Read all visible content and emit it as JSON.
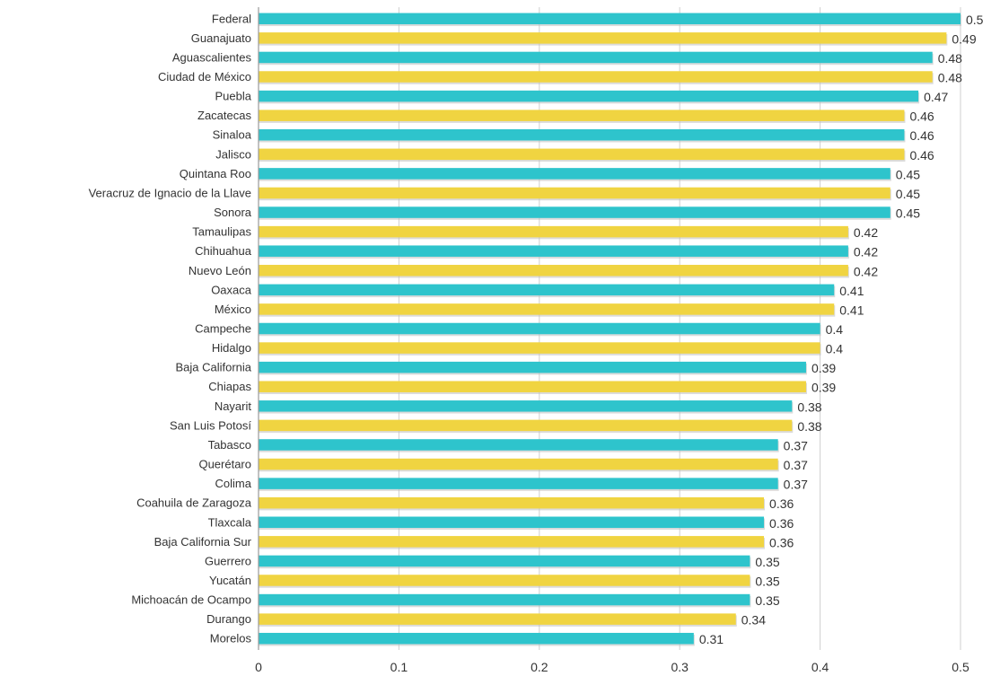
{
  "chart_data": {
    "type": "bar",
    "orientation": "horizontal",
    "title": "",
    "xlabel": "",
    "ylabel": "",
    "xlim": [
      0,
      0.5
    ],
    "x_ticks": [
      "0",
      "0.1",
      "0.2",
      "0.3",
      "0.4",
      "0.5"
    ],
    "grid": true,
    "legend": "none",
    "bar_colors": [
      "#2EC4CC",
      "#F0D441"
    ],
    "categories": [
      "Federal",
      "Guanajuato",
      "Aguascalientes",
      "Ciudad de México",
      "Puebla",
      "Zacatecas",
      "Sinaloa",
      "Jalisco",
      "Quintana Roo",
      "Veracruz de Ignacio de la Llave",
      "Sonora",
      "Tamaulipas",
      "Chihuahua",
      "Nuevo León",
      "Oaxaca",
      "México",
      "Campeche",
      "Hidalgo",
      "Baja California",
      "Chiapas",
      "Nayarit",
      "San Luis Potosí",
      "Tabasco",
      "Querétaro",
      "Colima",
      "Coahuila de Zaragoza",
      "Tlaxcala",
      "Baja California Sur",
      "Guerrero",
      "Yucatán",
      "Michoacán de Ocampo",
      "Durango",
      "Morelos"
    ],
    "values": [
      0.5,
      0.49,
      0.48,
      0.48,
      0.47,
      0.46,
      0.46,
      0.46,
      0.45,
      0.45,
      0.45,
      0.42,
      0.42,
      0.42,
      0.41,
      0.41,
      0.4,
      0.4,
      0.39,
      0.39,
      0.38,
      0.38,
      0.37,
      0.37,
      0.37,
      0.36,
      0.36,
      0.36,
      0.35,
      0.35,
      0.35,
      0.34,
      0.31
    ],
    "value_labels": [
      "0.5",
      "0.49",
      "0.48",
      "0.48",
      "0.47",
      "0.46",
      "0.46",
      "0.46",
      "0.45",
      "0.45",
      "0.45",
      "0.42",
      "0.42",
      "0.42",
      "0.41",
      "0.41",
      "0.4",
      "0.4",
      "0.39",
      "0.39",
      "0.38",
      "0.38",
      "0.37",
      "0.37",
      "0.37",
      "0.36",
      "0.36",
      "0.36",
      "0.35",
      "0.35",
      "0.35",
      "0.34",
      "0.31"
    ]
  }
}
